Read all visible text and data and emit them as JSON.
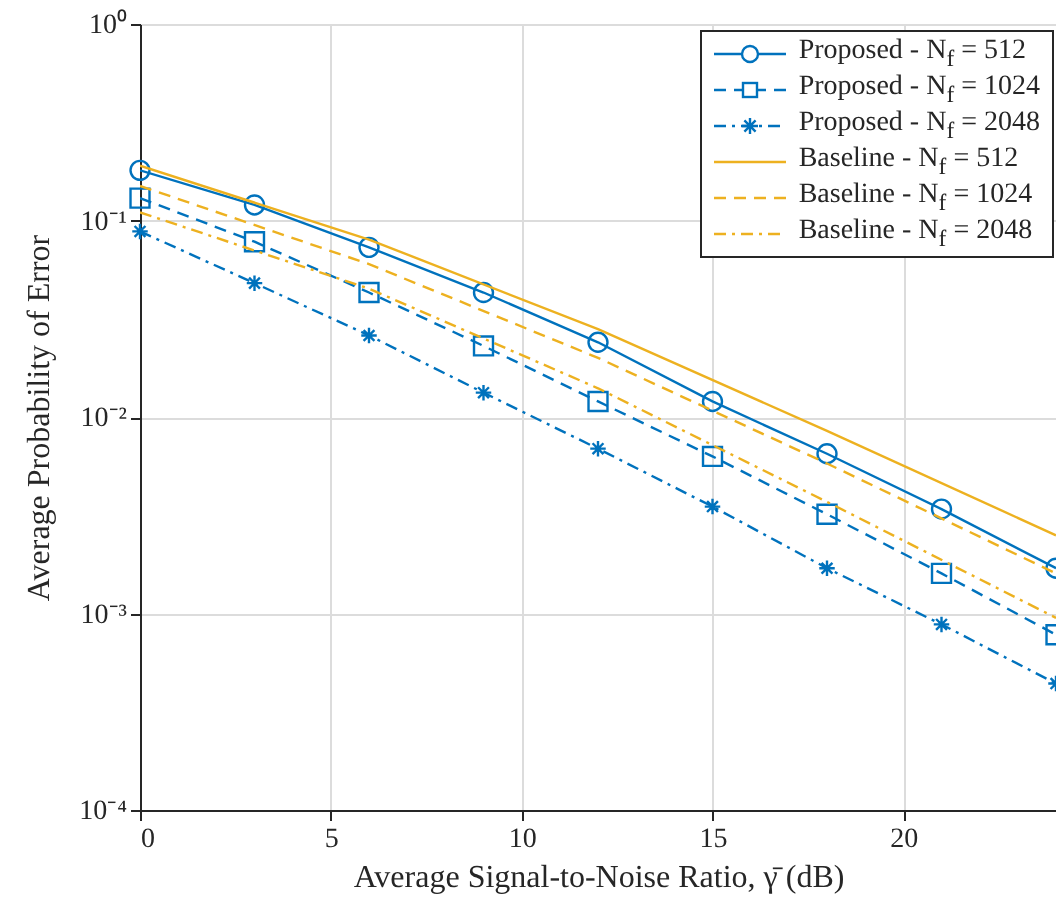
{
  "chart_data": {
    "type": "line",
    "xlabel": "Average Signal-to-Noise Ratio, γ̄ (dB)",
    "ylabel": "Average Probability of Error",
    "log": "y",
    "grid": true,
    "legend": "top right",
    "xlim": [
      0,
      24
    ],
    "xticks": [
      0,
      5,
      10,
      15,
      20
    ],
    "ylim": [
      0.0001,
      1
    ],
    "yticks": [
      {
        "value": 0.0001,
        "label": "10⁻⁴"
      },
      {
        "value": 0.001,
        "label": "10⁻³"
      },
      {
        "value": 0.01,
        "label": "10⁻²"
      },
      {
        "value": 0.1,
        "label": "10⁻¹"
      },
      {
        "value": 1,
        "label": "10⁰"
      }
    ],
    "series": [
      {
        "name": "Proposed - N$_{f}$ = 512",
        "color": "#0072bd",
        "marker": "circle",
        "line_style": "solid",
        "x": [
          0,
          3,
          6,
          9,
          12,
          15,
          18,
          21,
          24
        ],
        "values": [
          0.18,
          0.12,
          0.073,
          0.043,
          0.024,
          0.012,
          0.0065,
          0.0034,
          0.0017
        ]
      },
      {
        "name": "Proposed - N$_{f}$ = 1024",
        "color": "#0072bd",
        "marker": "square",
        "line_style": "dashed",
        "x": [
          0,
          3,
          6,
          9,
          12,
          15,
          18,
          21,
          24
        ],
        "values": [
          0.13,
          0.078,
          0.043,
          0.023,
          0.012,
          0.0063,
          0.0032,
          0.0016,
          0.00078
        ]
      },
      {
        "name": "Proposed - N$_{f}$ = 2048",
        "color": "#0072bd",
        "marker": "cross",
        "line_style": "dotted",
        "x": [
          0,
          3,
          6,
          9,
          12,
          15,
          18,
          21,
          24
        ],
        "values": [
          0.088,
          0.048,
          0.026,
          0.0133,
          0.0069,
          0.0035,
          0.0017,
          0.00088,
          0.00044
        ]
      },
      {
        "name": "Baseline - N$_{f}$ = 512",
        "color": "#edb120",
        "marker": "none",
        "line_style": "solid",
        "x": [
          0,
          6,
          12,
          18,
          24
        ],
        "values": [
          0.19,
          0.08,
          0.028,
          0.0085,
          0.0025
        ]
      },
      {
        "name": "Baseline - N$_{f}$ = 1024",
        "color": "#edb120",
        "marker": "none",
        "line_style": "dashed",
        "x": [
          0,
          6,
          12,
          18,
          24
        ],
        "values": [
          0.15,
          0.06,
          0.02,
          0.0058,
          0.0016
        ]
      },
      {
        "name": "Baseline - N$_{f}$ = 2048",
        "color": "#edb120",
        "marker": "none",
        "line_style": "dotted",
        "x": [
          0,
          6,
          12,
          18,
          24
        ],
        "values": [
          0.11,
          0.045,
          0.014,
          0.0037,
          0.00095
        ]
      }
    ]
  }
}
